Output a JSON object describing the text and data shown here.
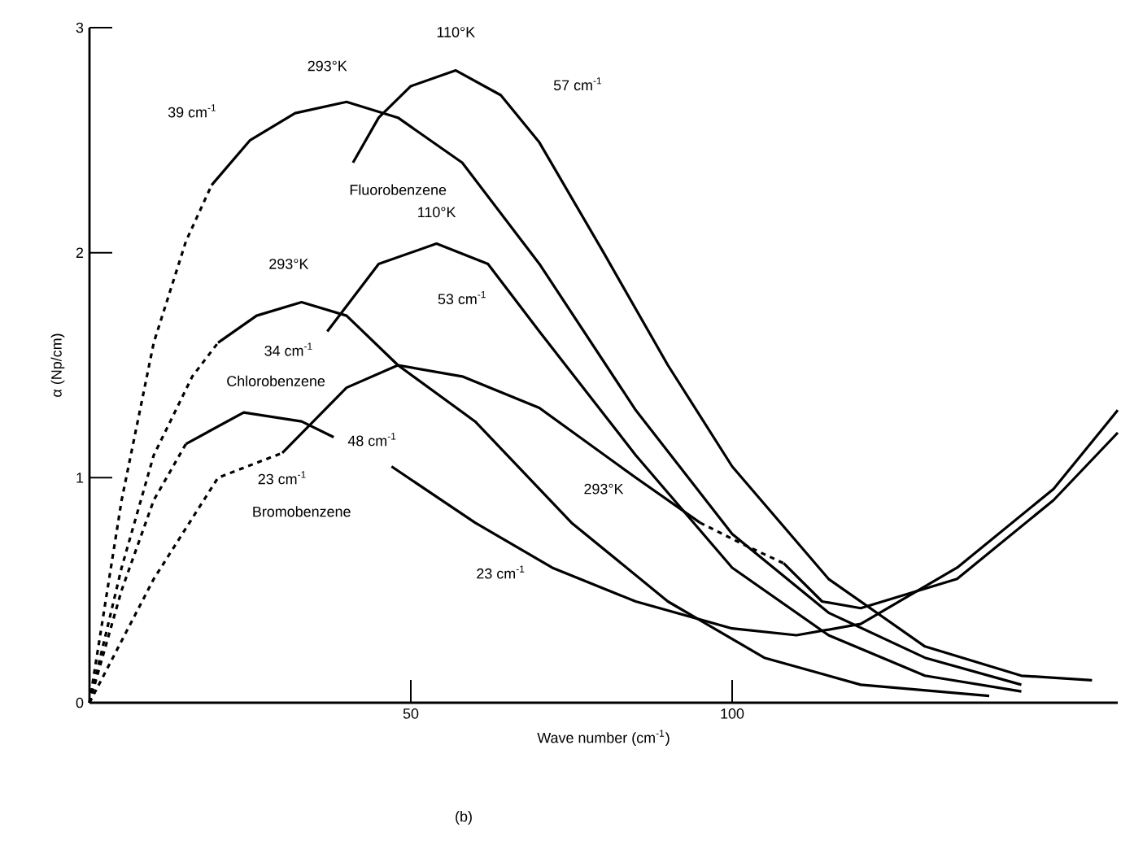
{
  "chart_data": {
    "type": "line",
    "xlabel": "Wave number (cm$^{-1}$)",
    "ylabel": "α (Np/cm)",
    "xlim": [
      0,
      160
    ],
    "ylim": [
      0,
      3
    ],
    "xticks": [
      50,
      100
    ],
    "yticks": [
      0,
      1,
      2,
      3
    ],
    "series": [
      {
        "color": "#000000",
        "line_style": "dashed",
        "x": [
          0,
          5,
          10,
          15,
          19
        ],
        "values": [
          0,
          0.9,
          1.6,
          2.05,
          2.3
        ]
      },
      {
        "color": "#000000",
        "line_style": "solid",
        "x": [
          19,
          25,
          32,
          40,
          48,
          58,
          70,
          85,
          100,
          115,
          130,
          145
        ],
        "values": [
          2.3,
          2.5,
          2.62,
          2.67,
          2.6,
          2.4,
          1.95,
          1.3,
          0.75,
          0.4,
          0.2,
          0.08
        ]
      },
      {
        "color": "#000000",
        "line_style": "solid",
        "x": [
          41,
          45,
          50,
          57,
          64,
          70,
          80,
          90,
          100,
          115,
          130,
          145,
          156
        ],
        "values": [
          2.4,
          2.6,
          2.74,
          2.81,
          2.7,
          2.49,
          2.0,
          1.5,
          1.05,
          0.55,
          0.25,
          0.12,
          0.1
        ]
      },
      {
        "color": "#000000",
        "line_style": "dashed",
        "x": [
          0,
          5,
          10,
          16,
          20
        ],
        "values": [
          0,
          0.6,
          1.1,
          1.45,
          1.6
        ]
      },
      {
        "color": "#000000",
        "line_style": "solid",
        "x": [
          20,
          26,
          33,
          40,
          48,
          60,
          75,
          90,
          105,
          120,
          140
        ],
        "values": [
          1.6,
          1.72,
          1.78,
          1.72,
          1.5,
          1.25,
          0.8,
          0.45,
          0.2,
          0.08,
          0.03
        ]
      },
      {
        "color": "#000000",
        "line_style": "solid",
        "x": [
          37,
          45,
          54,
          62,
          70,
          85,
          100,
          115,
          130,
          145
        ],
        "values": [
          1.65,
          1.95,
          2.04,
          1.95,
          1.65,
          1.1,
          0.6,
          0.3,
          0.12,
          0.05
        ]
      },
      {
        "color": "#000000",
        "line_style": "dashed",
        "x": [
          0,
          5,
          10,
          15
        ],
        "values": [
          0,
          0.5,
          0.9,
          1.15
        ]
      },
      {
        "color": "#000000",
        "line_style": "solid",
        "x": [
          15,
          24,
          33,
          38
        ],
        "values": [
          1.15,
          1.29,
          1.25,
          1.18
        ]
      },
      {
        "color": "#000000",
        "line_style": "solid",
        "x": [
          47,
          60,
          72,
          85,
          100,
          110,
          120,
          135,
          150,
          160
        ],
        "values": [
          1.05,
          0.8,
          0.6,
          0.45,
          0.33,
          0.3,
          0.35,
          0.6,
          0.95,
          1.3
        ]
      },
      {
        "color": "#000000",
        "line_style": "dashed",
        "x": [
          0,
          10,
          20,
          30
        ],
        "values": [
          0,
          0.55,
          1.0,
          1.11
        ]
      },
      {
        "color": "#000000",
        "line_style": "solid",
        "x": [
          30,
          40,
          48,
          58,
          70,
          85,
          95
        ],
        "values": [
          1.11,
          1.4,
          1.5,
          1.45,
          1.31,
          1.0,
          0.8
        ]
      },
      {
        "color": "#000000",
        "line_style": "dashed",
        "x": [
          95,
          102,
          108
        ],
        "values": [
          0.8,
          0.7,
          0.62
        ]
      },
      {
        "color": "#000000",
        "line_style": "solid",
        "x": [
          108,
          114,
          120,
          135,
          150,
          160
        ],
        "values": [
          0.62,
          0.45,
          0.42,
          0.55,
          0.9,
          1.2
        ]
      }
    ],
    "annotations": [
      "293°K",
      "110°K",
      "39 cm$^{-1}$",
      "57 cm$^{-1}$",
      "Fluorobenzene",
      "110°K",
      "293°K",
      "53 cm$^{-1}$",
      "34 cm$^{-1}$",
      "Chlorobenzene",
      "48 cm$^{-1}$",
      "23 cm$^{-1}$",
      "Bromobenzene",
      "293°K",
      "23 cm$^{-1}$",
      "(b)"
    ]
  }
}
